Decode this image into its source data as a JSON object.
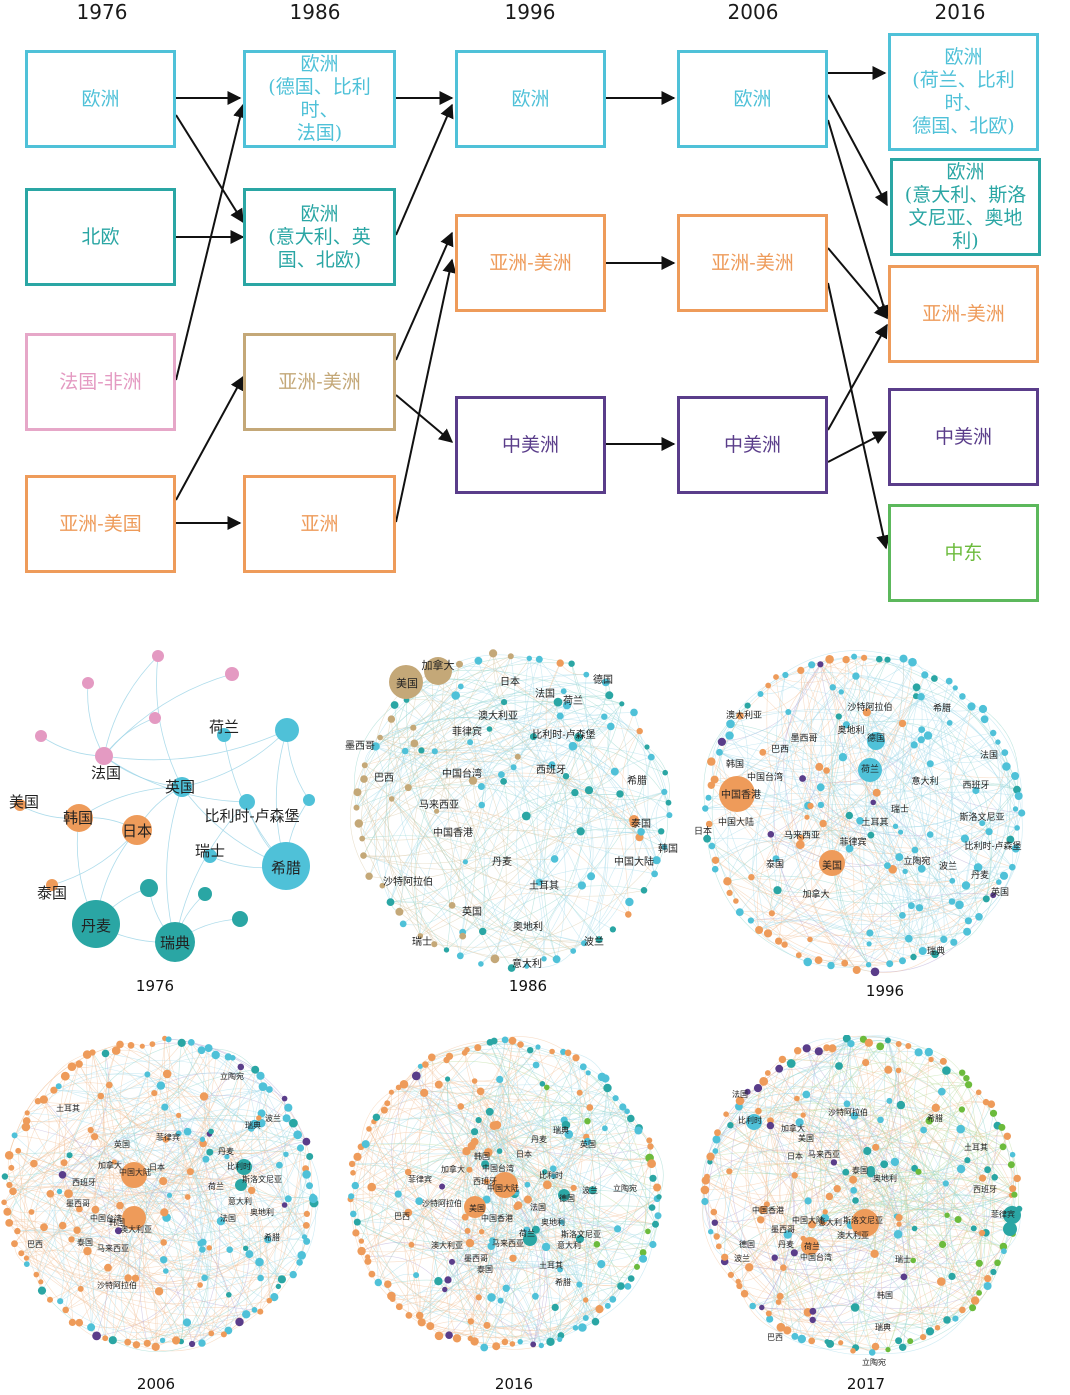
{
  "flow": {
    "years": [
      "1976",
      "1986",
      "1996",
      "2006",
      "2016"
    ],
    "boxes": {
      "b76_eu": "欧洲",
      "b76_nordic": "北欧",
      "b76_fr": "法国-非洲",
      "b76_asus": "亚洲-美国",
      "b86_eu1": [
        "欧洲",
        "(德国、比利时、",
        "法国)"
      ],
      "b86_eu2": [
        "欧洲",
        "(意大利、英",
        "国、北欧)"
      ],
      "b86_asam": "亚洲-美洲",
      "b86_as": "亚洲",
      "b96_eu": "欧洲",
      "b96_asam": "亚洲-美洲",
      "b96_cm": "中美洲",
      "b06_eu": "欧洲",
      "b06_asam": "亚洲-美洲",
      "b06_cm": "中美洲",
      "b16_eu1": [
        "欧洲",
        "(荷兰、比利时、",
        "德国、北欧)"
      ],
      "b16_eu2": [
        "欧洲",
        "(意大利、斯洛",
        "文尼亚、奥地利)"
      ],
      "b16_asam": "亚洲-美洲",
      "b16_cm": "中美洲",
      "b16_me": "中东"
    }
  },
  "colors": {
    "europe": "#4fc1d8",
    "nordic": "#2aa6a4",
    "france_africa": "#e49ac2",
    "asia": "#ee9b5a",
    "asia_america_tan": "#c4a878",
    "central_america": "#5a3d8a",
    "middle_east": "#6cbb3c"
  },
  "networks": [
    {
      "year": "1976",
      "labels": [
        "荷兰",
        "法国",
        "英国",
        "美国",
        "韩国",
        "日本",
        "比利时-卢森堡",
        "瑞士",
        "泰国",
        "希腊",
        "丹麦",
        "瑞典"
      ]
    },
    {
      "year": "1986",
      "labels": [
        "加拿大",
        "美国",
        "日本",
        "法国",
        "德国",
        "荷兰",
        "澳大利亚",
        "菲律宾",
        "比利时-卢森堡",
        "墨西哥",
        "巴西",
        "中国台湾",
        "西班牙",
        "希腊",
        "马来西亚",
        "中国香港",
        "泰国",
        "韩国",
        "丹麦",
        "中国大陆",
        "沙特阿拉伯",
        "土耳其",
        "英国",
        "奥地利",
        "瑞士",
        "波兰",
        "意大利"
      ]
    },
    {
      "year": "1996",
      "labels": [
        "沙特阿拉伯",
        "澳大利亚",
        "希腊",
        "墨西哥",
        "奥地利",
        "德国",
        "巴西",
        "韩国",
        "中国台湾",
        "荷兰",
        "法国",
        "中国香港",
        "意大利",
        "西班牙",
        "中国大陆",
        "瑞士",
        "斯洛文尼亚",
        "马来西亚",
        "土耳其",
        "日本",
        "菲律宾",
        "比利时-卢森堡",
        "泰国",
        "立陶宛",
        "美国",
        "波兰",
        "丹麦",
        "加拿大",
        "英国",
        "瑞典"
      ]
    },
    {
      "year": "2006",
      "labels": [
        "立陶宛",
        "土耳其",
        "瑞典",
        "波兰",
        "英国",
        "菲律宾",
        "丹麦",
        "加拿大",
        "日本",
        "中国大陆",
        "比利时",
        "斯洛文尼亚",
        "西班牙",
        "墨西哥",
        "荷兰",
        "意大利",
        "中国台湾",
        "奥地利",
        "法国",
        "韩国",
        "澳大利亚",
        "希腊",
        "泰国",
        "巴西",
        "马来西亚",
        "沙特阿拉伯"
      ]
    },
    {
      "year": "2016",
      "labels": [
        "丹麦",
        "瑞典",
        "韩国",
        "日本",
        "英国",
        "加拿大",
        "中国台湾",
        "比利时",
        "菲律宾",
        "西班牙",
        "中国大陆",
        "波兰",
        "立陶宛",
        "沙特阿拉伯",
        "德国",
        "法国",
        "巴西",
        "美国",
        "中国香港",
        "奥地利",
        "斯洛文尼亚",
        "荷兰",
        "澳大利亚",
        "马来西亚",
        "意大利",
        "墨西哥",
        "泰国",
        "土耳其",
        "希腊"
      ]
    },
    {
      "year": "2017",
      "labels": [
        "法国",
        "沙特阿拉伯",
        "希腊",
        "比利时",
        "加拿大",
        "日本",
        "土耳其",
        "马来西亚",
        "美国",
        "泰国",
        "奥地利",
        "西班牙",
        "中国香港",
        "中国大陆",
        "斯洛文尼亚",
        "菲律宾",
        "墨西哥",
        "意大利",
        "澳大利亚",
        "德国",
        "丹麦",
        "荷兰",
        "中国台湾",
        "瑞士",
        "波兰",
        "韩国",
        "瑞典",
        "巴西",
        "立陶宛"
      ]
    }
  ]
}
